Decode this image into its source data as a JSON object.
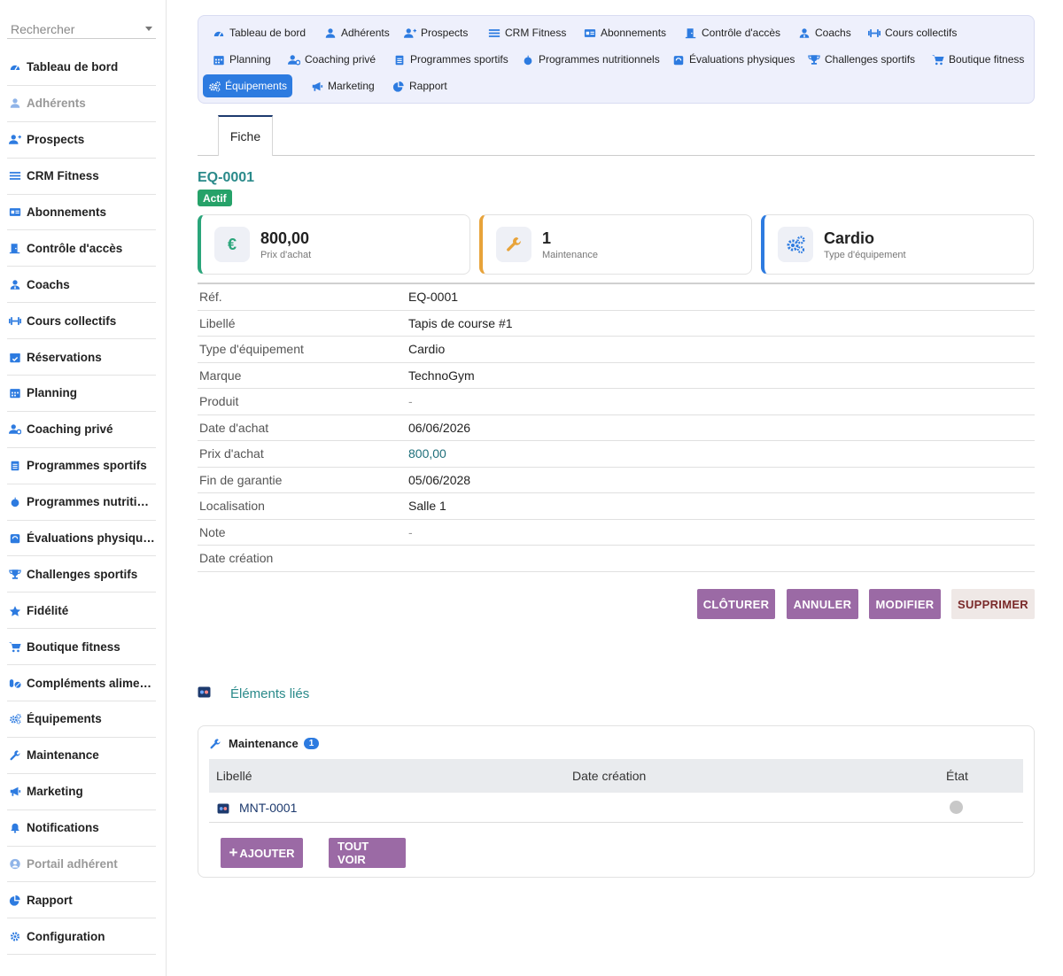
{
  "sidebar": {
    "search_placeholder": "Rechercher",
    "items": [
      {
        "label": "Tableau de bord",
        "icon": "dashboard-icon",
        "muted": false
      },
      {
        "label": "Adhérents",
        "icon": "user-icon",
        "muted": true
      },
      {
        "label": "Prospects",
        "icon": "user-plus-icon",
        "muted": false
      },
      {
        "label": "CRM Fitness",
        "icon": "list-icon",
        "muted": false
      },
      {
        "label": "Abonnements",
        "icon": "id-card-icon",
        "muted": false
      },
      {
        "label": "Contrôle d'accès",
        "icon": "door-icon",
        "muted": false
      },
      {
        "label": "Coachs",
        "icon": "user-tie-icon",
        "muted": false
      },
      {
        "label": "Cours collectifs",
        "icon": "dumbbell-icon",
        "muted": false
      },
      {
        "label": "Réservations",
        "icon": "calendar-check-icon",
        "muted": false
      },
      {
        "label": "Planning",
        "icon": "calendar-icon",
        "muted": false
      },
      {
        "label": "Coaching privé",
        "icon": "user-cog-icon",
        "muted": false
      },
      {
        "label": "Programmes sportifs",
        "icon": "clipboard-icon",
        "muted": false
      },
      {
        "label": "Programmes nutritionnels",
        "icon": "apple-icon",
        "muted": false
      },
      {
        "label": "Évaluations physiques",
        "icon": "weight-icon",
        "muted": false
      },
      {
        "label": "Challenges sportifs",
        "icon": "trophy-icon",
        "muted": false
      },
      {
        "label": "Fidélité",
        "icon": "star-icon",
        "muted": false
      },
      {
        "label": "Boutique fitness",
        "icon": "cart-icon",
        "muted": false
      },
      {
        "label": "Compléments alimentaires",
        "icon": "pills-icon",
        "muted": false
      },
      {
        "label": "Équipements",
        "icon": "cogs-icon",
        "muted": false
      },
      {
        "label": "Maintenance",
        "icon": "wrench-icon",
        "muted": false
      },
      {
        "label": "Marketing",
        "icon": "bullhorn-icon",
        "muted": false
      },
      {
        "label": "Notifications",
        "icon": "bell-icon",
        "muted": false
      },
      {
        "label": "Portail adhérent",
        "icon": "user-circle-icon",
        "muted": true
      },
      {
        "label": "Rapport",
        "icon": "pie-chart-icon",
        "muted": false
      },
      {
        "label": "Configuration",
        "icon": "gear-icon",
        "muted": false
      }
    ]
  },
  "topnav": {
    "items": [
      {
        "label": "Tableau de bord",
        "icon": "dashboard-icon"
      },
      {
        "label": "Adhérents",
        "icon": "user-icon"
      },
      {
        "label": "Prospects",
        "icon": "user-plus-icon"
      },
      {
        "label": "CRM Fitness",
        "icon": "list-icon"
      },
      {
        "label": "Abonnements",
        "icon": "id-card-icon"
      },
      {
        "label": "Contrôle d'accès",
        "icon": "door-icon"
      },
      {
        "label": "Coachs",
        "icon": "user-tie-icon"
      },
      {
        "label": "Cours collectifs",
        "icon": "dumbbell-icon"
      },
      {
        "label": "Planning",
        "icon": "calendar-icon"
      },
      {
        "label": "Coaching privé",
        "icon": "user-cog-icon"
      },
      {
        "label": "Programmes sportifs",
        "icon": "clipboard-icon"
      },
      {
        "label": "Programmes nutritionnels",
        "icon": "apple-icon"
      },
      {
        "label": "Évaluations physiques",
        "icon": "weight-icon"
      },
      {
        "label": "Challenges sportifs",
        "icon": "trophy-icon"
      },
      {
        "label": "Boutique fitness",
        "icon": "cart-icon"
      },
      {
        "label": "Équipements",
        "icon": "cogs-icon",
        "active": true
      },
      {
        "label": "Marketing",
        "icon": "bullhorn-icon"
      },
      {
        "label": "Rapport",
        "icon": "pie-chart-icon"
      }
    ]
  },
  "tabs": {
    "fiche": "Fiche"
  },
  "record": {
    "ref": "EQ-0001",
    "status": "Actif"
  },
  "cards": [
    {
      "value": "800,00",
      "label": "Prix d'achat",
      "icon": "euro-icon",
      "accent": "#2aa57a"
    },
    {
      "value": "1",
      "label": "Maintenance",
      "icon": "wrench-icon",
      "accent": "#e8a33a"
    },
    {
      "value": "Cardio",
      "label": "Type d'équipement",
      "icon": "cogs-icon",
      "accent": "#2d7be0"
    }
  ],
  "details": [
    {
      "key": "Réf.",
      "value": "EQ-0001",
      "style": ""
    },
    {
      "key": "Libellé",
      "value": "Tapis de course #1",
      "style": ""
    },
    {
      "key": "Type d'équipement",
      "value": "Cardio",
      "style": ""
    },
    {
      "key": "Marque",
      "value": "TechnoGym",
      "style": ""
    },
    {
      "key": "Produit",
      "value": "-",
      "style": "dash"
    },
    {
      "key": "Date d'achat",
      "value": "06/06/2026",
      "style": ""
    },
    {
      "key": "Prix d'achat",
      "value": "800,00",
      "style": "link"
    },
    {
      "key": "Fin de garantie",
      "value": "05/06/2028",
      "style": ""
    },
    {
      "key": "Localisation",
      "value": "Salle 1",
      "style": ""
    },
    {
      "key": "Note",
      "value": "-",
      "style": "dash"
    },
    {
      "key": "Date création",
      "value": "",
      "style": ""
    }
  ],
  "actions": {
    "close": "CLÔTURER",
    "cancel": "ANNULER",
    "edit": "MODIFIER",
    "delete": "SUPPRIMER"
  },
  "linked": {
    "title": "Éléments liés",
    "panel_title": "Maintenance",
    "count": "1",
    "columns": {
      "label": "Libellé",
      "created": "Date création",
      "state": "État"
    },
    "rows": [
      {
        "label": "MNT-0001",
        "created": ""
      }
    ],
    "add_button": "AJOUTER",
    "add_icon": "+",
    "view_all_button": "TOUT VOIR"
  },
  "colors": {
    "accent": "#2d7be0",
    "teal": "#2a8a8a",
    "purple_button": "#9b6aa5",
    "status_green": "#26a269"
  }
}
